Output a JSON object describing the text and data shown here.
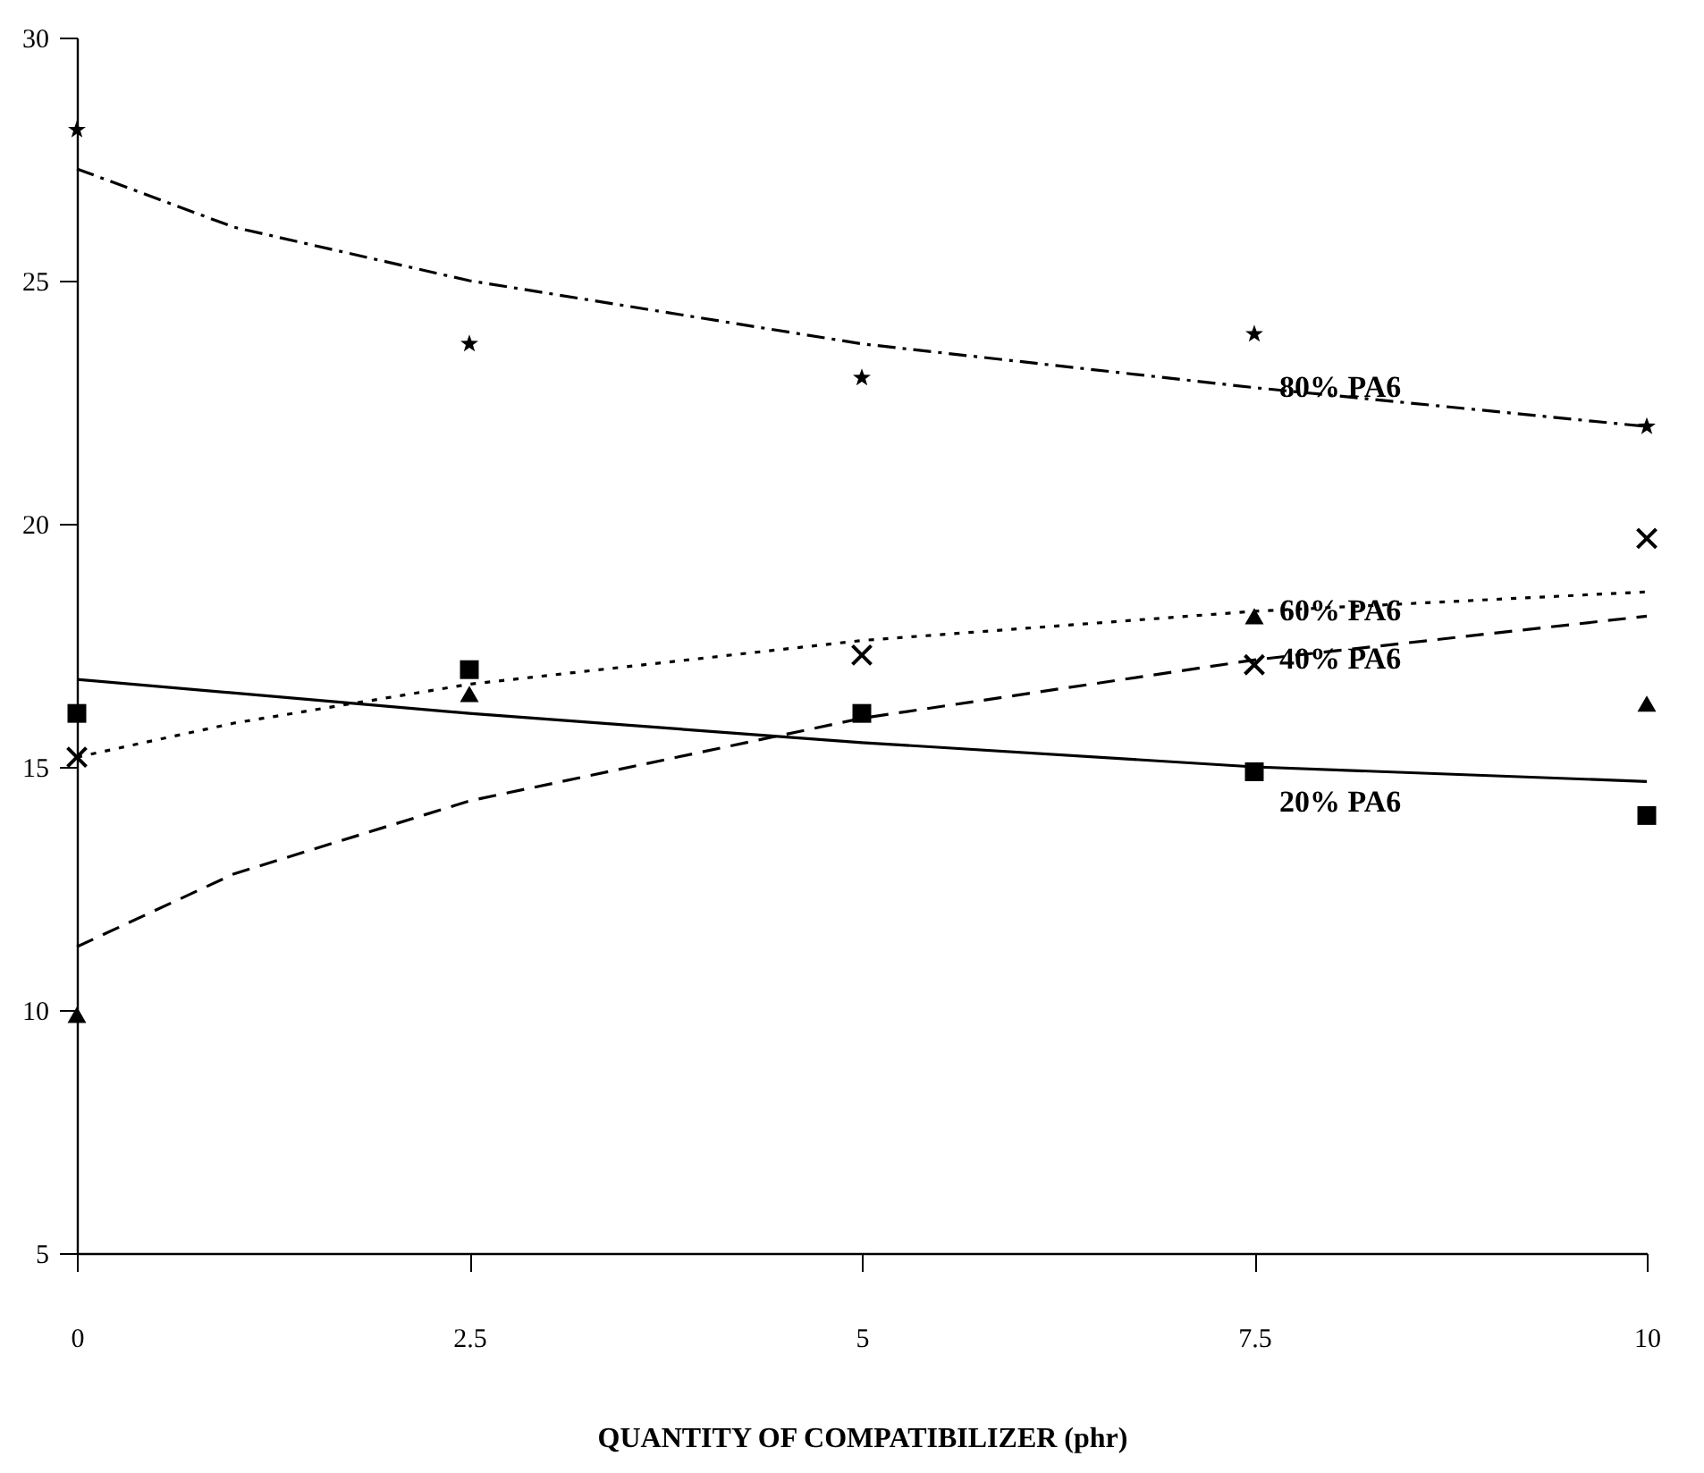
{
  "chart_data": {
    "type": "scatter",
    "xlabel": "QUANTITY OF COMPATIBILIZER (phr)",
    "x": [
      0,
      2.5,
      5,
      7.5,
      10
    ],
    "xlim": [
      0,
      10
    ],
    "xticks": [
      0,
      2.5,
      5,
      7.5,
      10
    ],
    "ylim": [
      5,
      30
    ],
    "yticks": [
      5,
      10,
      15,
      20,
      25,
      30
    ],
    "grid": false,
    "series": [
      {
        "color": "#000000",
        "marker": "star",
        "values": [
          28.1,
          23.7,
          23.0,
          23.9,
          22.0
        ]
      },
      {
        "color": "#000000",
        "marker": "cross",
        "values": [
          15.2,
          null,
          17.3,
          17.1,
          19.7
        ]
      },
      {
        "color": "#000000",
        "marker": "triangle",
        "values": [
          9.9,
          16.5,
          null,
          18.1,
          16.3
        ]
      },
      {
        "color": "#000000",
        "marker": "square",
        "values": [
          16.1,
          17.0,
          16.1,
          14.9,
          14.0
        ]
      },
      {
        "type": "line",
        "name": "80% PA6",
        "color": "#000000",
        "line_style": "dashdot",
        "x": [
          0,
          1,
          2.5,
          5,
          7.5,
          10
        ],
        "values": [
          27.3,
          26.1,
          25.0,
          23.7,
          22.8,
          22.0
        ]
      },
      {
        "type": "line",
        "name": "60% PA6",
        "color": "#000000",
        "line_style": "dotted",
        "x": [
          0,
          1,
          2.5,
          5,
          7.5,
          10
        ],
        "values": [
          15.2,
          15.9,
          16.7,
          17.6,
          18.2,
          18.6
        ]
      },
      {
        "type": "line",
        "name": "40% PA6",
        "color": "#000000",
        "line_style": "dashed",
        "x": [
          0,
          1,
          2.5,
          5,
          7.5,
          10
        ],
        "values": [
          11.3,
          12.8,
          14.3,
          16.0,
          17.2,
          18.1
        ]
      },
      {
        "type": "line",
        "name": "20% PA6",
        "color": "#000000",
        "line_style": "solid",
        "x": [
          0,
          2.5,
          5,
          7.5,
          10
        ],
        "values": [
          16.8,
          16.1,
          15.5,
          15.0,
          14.7
        ]
      }
    ]
  }
}
